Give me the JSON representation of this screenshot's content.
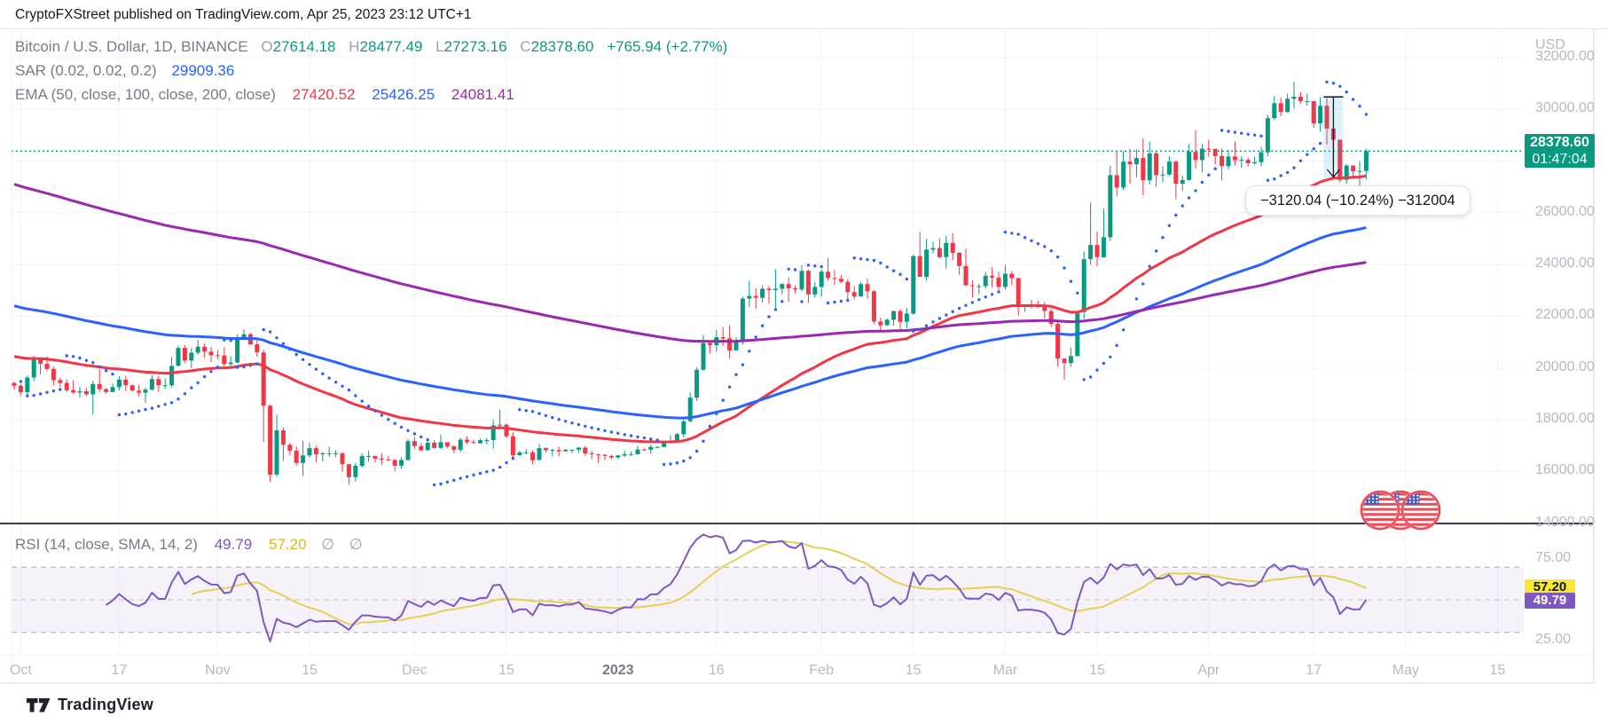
{
  "header": {
    "title": "CryptoFXStreet published on TradingView.com, Apr 25, 2023 23:12 UTC+1"
  },
  "legend": {
    "symbol": "Bitcoin / U.S. Dollar, 1D, BINANCE",
    "ohlc": [
      {
        "k": "O",
        "v": "27614.18"
      },
      {
        "k": "H",
        "v": "28477.49"
      },
      {
        "k": "L",
        "v": "27273.16"
      },
      {
        "k": "C",
        "v": "28378.60"
      }
    ],
    "change": "+765.94 (+2.77%)",
    "sar_label": "SAR (0.02, 0.02, 0.2)",
    "sar_value": "29909.36",
    "ema_label": "EMA (50, close, 100, close, 200, close)",
    "ema_values": [
      {
        "v": "27420.52",
        "color": "#f23645"
      },
      {
        "v": "25426.25",
        "color": "#2962ff"
      },
      {
        "v": "24081.41",
        "color": "#9c27b0"
      }
    ]
  },
  "rsi_legend": {
    "label": "RSI (14, close, SMA, 14, 2)",
    "rsi_value": "49.79",
    "ma_value": "57.20",
    "extra": "∅  ∅",
    "rsi_color": "#7e57c2",
    "ma_color": "#d9b820"
  },
  "price_scale": {
    "currency": "USD",
    "labels": [
      {
        "t": "32000.00",
        "v": 32000
      },
      {
        "t": "30000.00",
        "v": 30000
      },
      {
        "t": "26000.00",
        "v": 26000
      },
      {
        "t": "24000.00",
        "v": 24000
      },
      {
        "t": "22000.00",
        "v": 22000
      },
      {
        "t": "20000.00",
        "v": 20000
      },
      {
        "t": "18000.00",
        "v": 18000
      },
      {
        "t": "16000.00",
        "v": 16000
      },
      {
        "t": "14000.00",
        "v": 14000
      }
    ],
    "price_badge": {
      "text": "28378.60",
      "countdown": "01:47:04",
      "bg": "#089981",
      "fg": "#ffffff"
    }
  },
  "rsi_scale": {
    "labels": [
      {
        "t": "75.00",
        "v": 75
      },
      {
        "t": "25.00",
        "v": 25
      }
    ],
    "badges": [
      {
        "text": "57.20",
        "v": 57.2,
        "bg": "#f7e632",
        "fg": "#131722"
      },
      {
        "text": "49.79",
        "v": 49.79,
        "bg": "#7e57c2",
        "fg": "#ffffff"
      }
    ]
  },
  "time_axis": {
    "ticks": [
      {
        "label": "Oct",
        "i": 1,
        "strong": false
      },
      {
        "label": "17",
        "i": 16,
        "strong": false
      },
      {
        "label": "Nov",
        "i": 31,
        "strong": false
      },
      {
        "label": "15",
        "i": 45,
        "strong": false
      },
      {
        "label": "Dec",
        "i": 61,
        "strong": false
      },
      {
        "label": "15",
        "i": 75,
        "strong": false
      },
      {
        "label": "2023",
        "i": 92,
        "strong": true
      },
      {
        "label": "16",
        "i": 107,
        "strong": false
      },
      {
        "label": "Feb",
        "i": 123,
        "strong": false
      },
      {
        "label": "15",
        "i": 137,
        "strong": false
      },
      {
        "label": "Mar",
        "i": 151,
        "strong": false
      },
      {
        "label": "15",
        "i": 165,
        "strong": false
      },
      {
        "label": "Apr",
        "i": 182,
        "strong": false
      },
      {
        "label": "17",
        "i": 198,
        "strong": false
      },
      {
        "label": "May",
        "i": 212,
        "strong": false
      },
      {
        "label": "15",
        "i": 226,
        "strong": false
      }
    ]
  },
  "tooltip": {
    "text": "−3120.04 (−10.24%) −312004"
  },
  "footer": {
    "brand": "TradingView"
  },
  "chart_data": {
    "type": "candlestick",
    "title": "Bitcoin / U.S. Dollar, 1D, BINANCE",
    "timeframe": "1D",
    "x_range": [
      "Oct 1, 2022",
      "Apr 25, 2023"
    ],
    "y_axis": {
      "min": 13800,
      "max": 33200,
      "grid_min": 14000,
      "grid_max": 32000,
      "grid_step": 2000
    },
    "up_color": "#089981",
    "down_color": "#f23645",
    "grid_color": "#f0f3fa",
    "last_price": 28378.6,
    "first_open": 19420,
    "candles_hlc_open_equals_prev_close": [
      [
        19480,
        19160,
        19310
      ],
      [
        19390,
        18920,
        19060
      ],
      [
        19710,
        18960,
        19630
      ],
      [
        20470,
        19500,
        20340
      ],
      [
        20360,
        19750,
        20160
      ],
      [
        20450,
        19870,
        19960
      ],
      [
        20060,
        19320,
        19530
      ],
      [
        19620,
        19260,
        19420
      ],
      [
        19560,
        19060,
        19140
      ],
      [
        19520,
        19010,
        19050
      ],
      [
        19270,
        18850,
        19100
      ],
      [
        19240,
        18910,
        18980
      ],
      [
        19510,
        18190,
        19380
      ],
      [
        19950,
        19070,
        19180
      ],
      [
        19230,
        19000,
        19070
      ],
      [
        19400,
        19060,
        19260
      ],
      [
        19680,
        19130,
        19550
      ],
      [
        19700,
        19100,
        19330
      ],
      [
        19370,
        19090,
        19120
      ],
      [
        19350,
        18900,
        19040
      ],
      [
        19250,
        18650,
        19160
      ],
      [
        19720,
        19120,
        19570
      ],
      [
        19700,
        19070,
        19330
      ],
      [
        19600,
        19190,
        19330
      ],
      [
        20420,
        19250,
        20080
      ],
      [
        20860,
        20050,
        20770
      ],
      [
        20880,
        20200,
        20290
      ],
      [
        20760,
        20000,
        20590
      ],
      [
        21080,
        20510,
        20820
      ],
      [
        20950,
        20380,
        20630
      ],
      [
        20800,
        20230,
        20490
      ],
      [
        20700,
        20330,
        20480
      ],
      [
        20800,
        20050,
        20150
      ],
      [
        20450,
        20020,
        20210
      ],
      [
        21300,
        20190,
        21150
      ],
      [
        21480,
        21090,
        21300
      ],
      [
        21360,
        20900,
        20910
      ],
      [
        21070,
        20430,
        20600
      ],
      [
        20700,
        17140,
        18540
      ],
      [
        18590,
        15590,
        15880
      ],
      [
        18200,
        15790,
        17590
      ],
      [
        17700,
        16400,
        17030
      ],
      [
        17100,
        16620,
        16800
      ],
      [
        16960,
        16230,
        16330
      ],
      [
        17190,
        15820,
        16620
      ],
      [
        17130,
        16530,
        16900
      ],
      [
        16990,
        16360,
        16660
      ],
      [
        16750,
        16390,
        16700
      ],
      [
        16960,
        16560,
        16700
      ],
      [
        16820,
        16550,
        16700
      ],
      [
        16750,
        15990,
        16280
      ],
      [
        16300,
        15480,
        15780
      ],
      [
        16320,
        15620,
        16220
      ],
      [
        16700,
        16150,
        16600
      ],
      [
        16810,
        16380,
        16600
      ],
      [
        16610,
        16340,
        16500
      ],
      [
        16700,
        16260,
        16460
      ],
      [
        16600,
        16410,
        16440
      ],
      [
        16490,
        16010,
        16220
      ],
      [
        16550,
        16100,
        16440
      ],
      [
        17250,
        16430,
        17170
      ],
      [
        17330,
        16860,
        16980
      ],
      [
        17110,
        16780,
        16820
      ],
      [
        17160,
        16860,
        17110
      ],
      [
        17210,
        16880,
        16910
      ],
      [
        17420,
        16870,
        17130
      ],
      [
        17110,
        16910,
        16970
      ],
      [
        17010,
        16700,
        16840
      ],
      [
        17300,
        16740,
        17230
      ],
      [
        17360,
        17050,
        17130
      ],
      [
        17230,
        17100,
        17090
      ],
      [
        17270,
        17070,
        17210
      ],
      [
        17290,
        17050,
        17210
      ],
      [
        18000,
        16880,
        17780
      ],
      [
        18390,
        17660,
        17810
      ],
      [
        17850,
        17280,
        17360
      ],
      [
        17520,
        16530,
        16630
      ],
      [
        16790,
        16580,
        16740
      ],
      [
        16870,
        16660,
        16740
      ],
      [
        16820,
        16270,
        16440
      ],
      [
        17060,
        16430,
        16900
      ],
      [
        16930,
        16730,
        16820
      ],
      [
        16870,
        16580,
        16830
      ],
      [
        16960,
        16590,
        16780
      ],
      [
        16880,
        16780,
        16840
      ],
      [
        16860,
        16700,
        16840
      ],
      [
        16940,
        16730,
        16920
      ],
      [
        16990,
        16600,
        16700
      ],
      [
        16790,
        16470,
        16670
      ],
      [
        16680,
        16330,
        16640
      ],
      [
        16680,
        16440,
        16600
      ],
      [
        16640,
        16470,
        16540
      ],
      [
        16630,
        16480,
        16620
      ],
      [
        16800,
        16550,
        16670
      ],
      [
        16780,
        16600,
        16670
      ],
      [
        16990,
        16640,
        16850
      ],
      [
        16880,
        16790,
        16840
      ],
      [
        17040,
        16680,
        16950
      ],
      [
        16980,
        16910,
        16950
      ],
      [
        17180,
        16920,
        17090
      ],
      [
        17400,
        17110,
        17180
      ],
      [
        17490,
        17150,
        17440
      ],
      [
        18010,
        17320,
        17940
      ],
      [
        19060,
        17890,
        18850
      ],
      [
        20010,
        18720,
        19930
      ],
      [
        21260,
        19890,
        20960
      ],
      [
        21050,
        20560,
        20880
      ],
      [
        21470,
        20620,
        21190
      ],
      [
        21590,
        20840,
        21140
      ],
      [
        21650,
        20370,
        20680
      ],
      [
        21190,
        20660,
        21080
      ],
      [
        22750,
        20900,
        22680
      ],
      [
        23370,
        22340,
        22780
      ],
      [
        23080,
        22290,
        22710
      ],
      [
        23180,
        22530,
        23060
      ],
      [
        23160,
        22490,
        23010
      ],
      [
        23820,
        22320,
        23060
      ],
      [
        23280,
        22850,
        23240
      ],
      [
        23500,
        22560,
        23080
      ],
      [
        23190,
        22880,
        23030
      ],
      [
        23970,
        22970,
        23750
      ],
      [
        23800,
        22510,
        22840
      ],
      [
        23320,
        22720,
        23130
      ],
      [
        23810,
        22760,
        23720
      ],
      [
        24250,
        23370,
        23470
      ],
      [
        23780,
        23190,
        23440
      ],
      [
        23580,
        23290,
        23330
      ],
      [
        23430,
        22630,
        22930
      ],
      [
        23160,
        22640,
        22760
      ],
      [
        23340,
        22760,
        23240
      ],
      [
        23450,
        22670,
        22960
      ],
      [
        23010,
        21690,
        21790
      ],
      [
        21940,
        21450,
        21650
      ],
      [
        21910,
        21610,
        21860
      ],
      [
        22090,
        21630,
        22200
      ],
      [
        22270,
        21420,
        21780
      ],
      [
        22320,
        21530,
        22100
      ],
      [
        24380,
        22050,
        24320
      ],
      [
        25250,
        23570,
        23520
      ],
      [
        24990,
        23370,
        24570
      ],
      [
        24870,
        24430,
        24630
      ],
      [
        25010,
        24230,
        24280
      ],
      [
        25100,
        23840,
        24830
      ],
      [
        25210,
        24160,
        24450
      ],
      [
        24480,
        23600,
        23940
      ],
      [
        24600,
        23610,
        23190
      ],
      [
        23390,
        22720,
        23160
      ],
      [
        23260,
        22850,
        23160
      ],
      [
        23710,
        23070,
        23560
      ],
      [
        23890,
        23110,
        23490
      ],
      [
        23710,
        23020,
        23130
      ],
      [
        23980,
        23020,
        23640
      ],
      [
        23740,
        23190,
        23470
      ],
      [
        23480,
        22030,
        22360
      ],
      [
        22410,
        22170,
        22430
      ],
      [
        22620,
        22290,
        22410
      ],
      [
        22600,
        22330,
        22350
      ],
      [
        22550,
        21930,
        22200
      ],
      [
        22290,
        21580,
        21700
      ],
      [
        21830,
        20050,
        20360
      ],
      [
        20370,
        19550,
        20190
      ],
      [
        20790,
        20050,
        20460
      ],
      [
        22160,
        20440,
        22160
      ],
      [
        24500,
        21900,
        24200
      ],
      [
        26390,
        23980,
        24750
      ],
      [
        25270,
        23920,
        24280
      ],
      [
        26170,
        24280,
        25050
      ],
      [
        27810,
        24900,
        27450
      ],
      [
        28390,
        26620,
        26970
      ],
      [
        28370,
        26880,
        27970
      ],
      [
        28470,
        27120,
        27870
      ],
      [
        28440,
        27370,
        28110
      ],
      [
        28870,
        26680,
        27250
      ],
      [
        28750,
        27100,
        28290
      ],
      [
        28370,
        27000,
        27450
      ],
      [
        27790,
        27170,
        27470
      ],
      [
        28190,
        27420,
        27970
      ],
      [
        28020,
        26510,
        27120
      ],
      [
        27430,
        26850,
        27260
      ],
      [
        28650,
        27230,
        28350
      ],
      [
        29180,
        27700,
        28030
      ],
      [
        28650,
        27560,
        28470
      ],
      [
        28810,
        28160,
        28460
      ],
      [
        28470,
        27870,
        28190
      ],
      [
        28480,
        27250,
        27800
      ],
      [
        28430,
        27670,
        28170
      ],
      [
        28750,
        27820,
        28030
      ],
      [
        28180,
        27730,
        28040
      ],
      [
        28120,
        27780,
        27910
      ],
      [
        28160,
        27850,
        27950
      ],
      [
        28540,
        27790,
        28330
      ],
      [
        29770,
        28180,
        29650
      ],
      [
        30510,
        29580,
        30230
      ],
      [
        30460,
        29730,
        29890
      ],
      [
        30600,
        29860,
        30400
      ],
      [
        31050,
        30010,
        30480
      ],
      [
        30660,
        30220,
        30310
      ],
      [
        30600,
        30130,
        30310
      ],
      [
        30230,
        29280,
        29450
      ],
      [
        30470,
        29130,
        30130
      ],
      [
        30420,
        28620,
        29250
      ],
      [
        29090,
        28020,
        28820
      ],
      [
        28790,
        27170,
        27270
      ],
      [
        27870,
        27120,
        27820
      ],
      [
        27820,
        27390,
        27600
      ],
      [
        27990,
        26950,
        27610
      ],
      [
        28477.49,
        27273.16,
        28378.6
      ]
    ],
    "overlays": {
      "emas": [
        {
          "period": 50,
          "seed": 20450,
          "last": 27420.52,
          "color": "#f23645"
        },
        {
          "period": 100,
          "seed": 22400,
          "last": 25426.25,
          "color": "#2962ff"
        },
        {
          "period": 200,
          "seed": 27100,
          "last": 24081.41,
          "color": "#9c27b0"
        }
      ],
      "sar": {
        "start": 0.02,
        "step": 0.02,
        "max": 0.2,
        "last": 29909.36,
        "color": "#2962ff"
      },
      "price_line": {
        "value": 28378.6,
        "color": "#089981"
      },
      "measure": {
        "from_index": 200,
        "to_index": 202,
        "top_price": 30470,
        "bottom_price": 27360,
        "change": -3120.04,
        "change_pct": -10.24,
        "fill": "#38a6d1",
        "line_color": "#131722"
      }
    },
    "rsi": {
      "period": 14,
      "ma_period": 14,
      "line_color": "#7e57c2",
      "ma_color": "#e7cf55",
      "bands": [
        70,
        50,
        30
      ],
      "band_fill": "#7e57c2",
      "last": 49.79,
      "ma_last": 57.2
    }
  }
}
